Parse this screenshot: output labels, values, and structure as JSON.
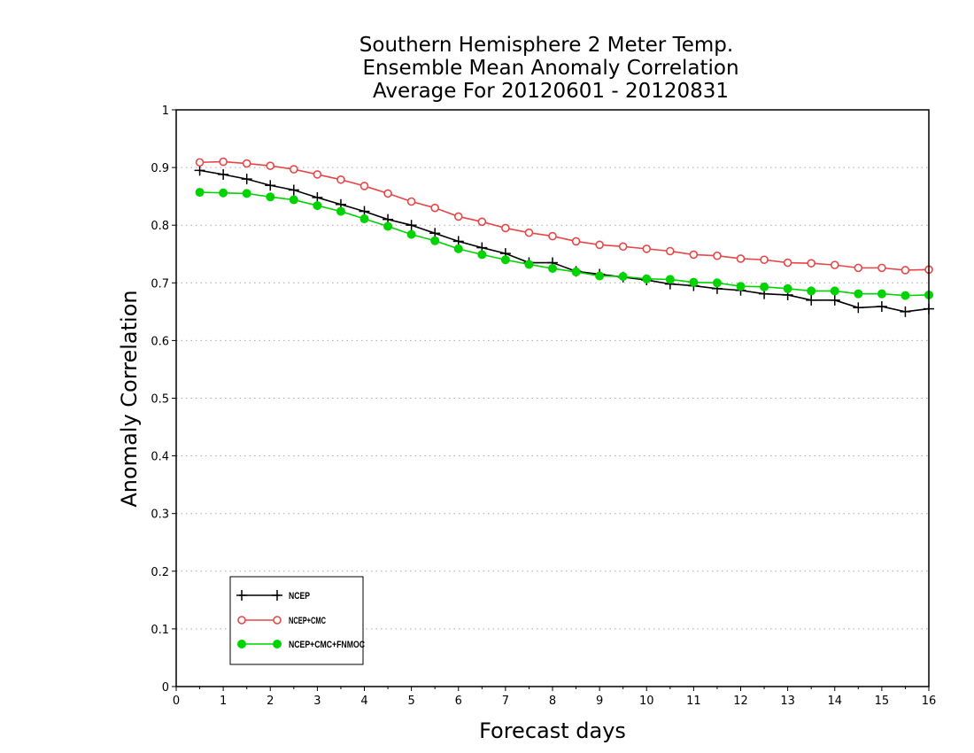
{
  "chart_data": {
    "type": "line",
    "title_lines": [
      "Southern Hemisphere 2 Meter Temp.",
      "Ensemble Mean Anomaly Correlation",
      "Average For 20120601 - 20120831"
    ],
    "xlabel": "Forecast days",
    "ylabel": "Anomaly Correlation",
    "xlim": [
      0,
      16
    ],
    "ylim": [
      0,
      1
    ],
    "x_ticks": [
      "0",
      "1",
      "2",
      "3",
      "4",
      "5",
      "6",
      "7",
      "8",
      "9",
      "10",
      "11",
      "12",
      "13",
      "14",
      "15",
      "16"
    ],
    "y_ticks": [
      "0",
      "0.1",
      "0.2",
      "0.3",
      "0.4",
      "0.5",
      "0.6",
      "0.7",
      "0.8",
      "0.9",
      "1"
    ],
    "grid": "horizontal dotted",
    "legend_position": "bottom-left",
    "x": [
      0.5,
      1,
      1.5,
      2,
      2.5,
      3,
      3.5,
      4,
      4.5,
      5,
      5.5,
      6,
      6.5,
      7,
      7.5,
      8,
      8.5,
      9,
      9.5,
      10,
      10.5,
      11,
      11.5,
      12,
      12.5,
      13,
      13.5,
      14,
      14.5,
      15,
      15.5,
      16
    ],
    "series": [
      {
        "name": "NCEP",
        "color": "#000000",
        "marker": "plus",
        "values": [
          0.895,
          0.888,
          0.88,
          0.869,
          0.861,
          0.848,
          0.836,
          0.824,
          0.81,
          0.8,
          0.786,
          0.772,
          0.761,
          0.751,
          0.735,
          0.735,
          0.72,
          0.715,
          0.71,
          0.705,
          0.698,
          0.695,
          0.69,
          0.687,
          0.681,
          0.679,
          0.67,
          0.67,
          0.657,
          0.659,
          0.65,
          0.655
        ]
      },
      {
        "name": "NCEP+CMC",
        "color": "#e84646",
        "marker": "open-circle",
        "values": [
          0.909,
          0.91,
          0.907,
          0.903,
          0.897,
          0.888,
          0.879,
          0.868,
          0.855,
          0.841,
          0.83,
          0.815,
          0.806,
          0.795,
          0.787,
          0.781,
          0.772,
          0.766,
          0.763,
          0.759,
          0.755,
          0.749,
          0.747,
          0.742,
          0.74,
          0.735,
          0.734,
          0.731,
          0.726,
          0.726,
          0.722,
          0.723
        ]
      },
      {
        "name": "NCEP+CMC+FNMOC",
        "color": "#00d400",
        "marker": "filled-circle",
        "values": [
          0.857,
          0.856,
          0.855,
          0.849,
          0.844,
          0.834,
          0.824,
          0.811,
          0.798,
          0.784,
          0.773,
          0.759,
          0.749,
          0.74,
          0.732,
          0.725,
          0.719,
          0.712,
          0.711,
          0.707,
          0.706,
          0.701,
          0.7,
          0.694,
          0.693,
          0.69,
          0.686,
          0.686,
          0.681,
          0.681,
          0.678,
          0.679
        ]
      }
    ]
  }
}
